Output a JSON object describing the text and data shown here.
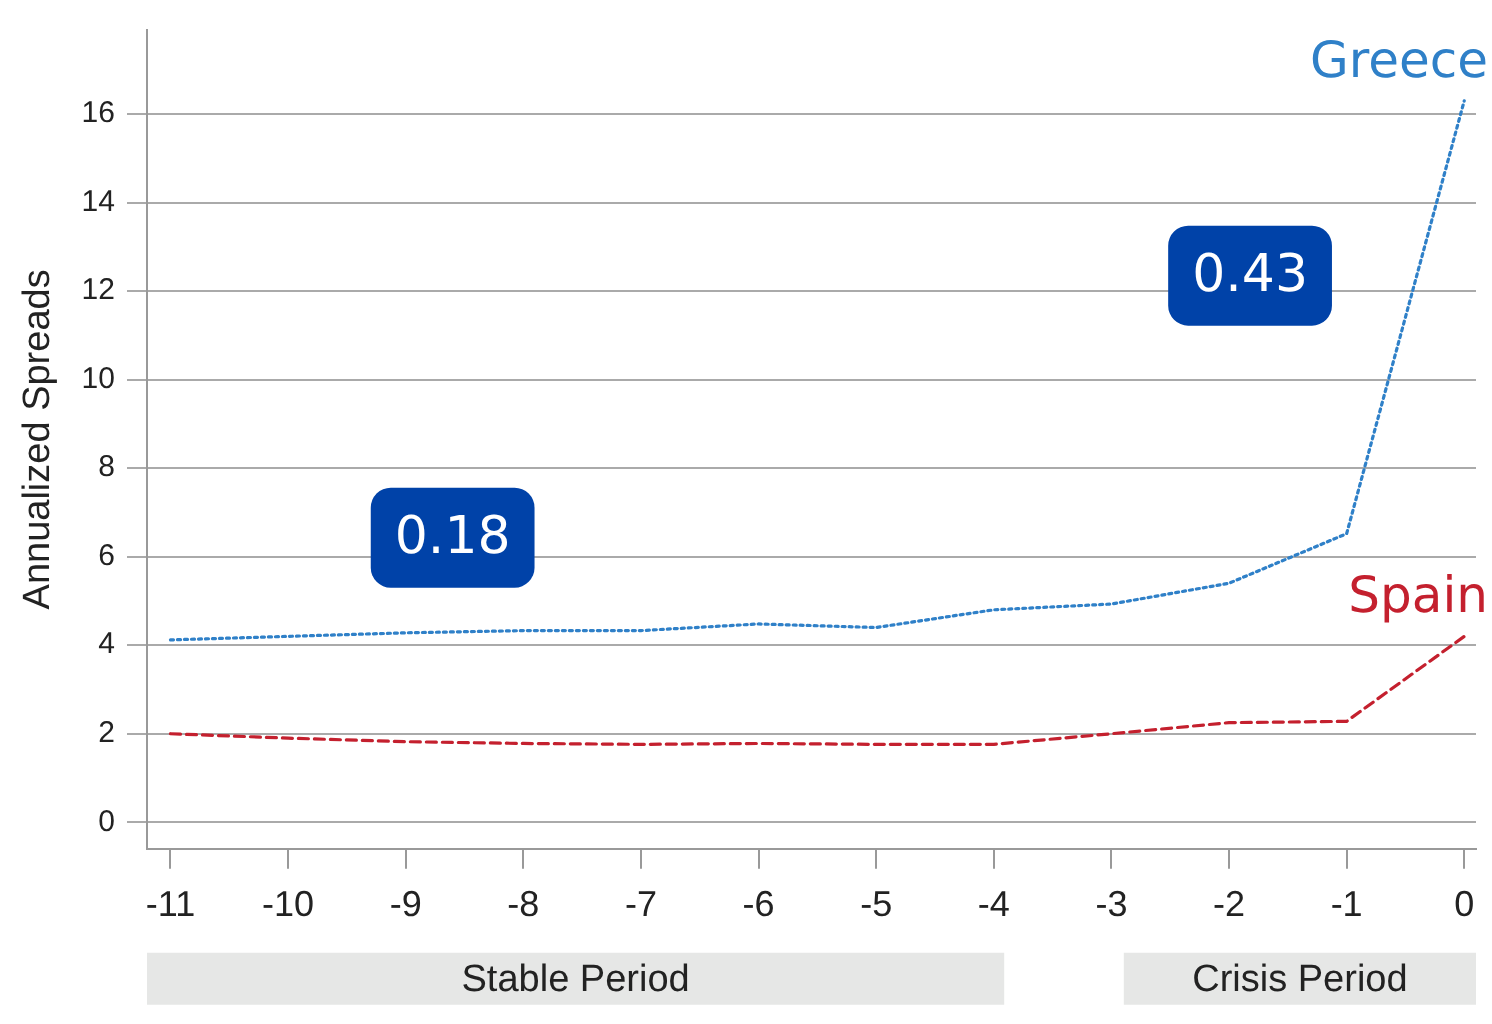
{
  "chart_data": {
    "type": "line",
    "ylabel": "Annualized Spreads",
    "x": [
      -11,
      -10,
      -9,
      -8,
      -7,
      -6,
      -5,
      -4,
      -3,
      -2,
      -1,
      0
    ],
    "series": [
      {
        "name": "Greece",
        "color": "#2f80c8",
        "line_style": "dotted",
        "values": [
          4.12,
          4.2,
          4.28,
          4.33,
          4.33,
          4.48,
          4.4,
          4.8,
          4.93,
          5.4,
          6.52,
          16.3
        ]
      },
      {
        "name": "Spain",
        "color": "#c4202e",
        "line_style": "dashed",
        "values": [
          2.0,
          1.9,
          1.82,
          1.78,
          1.76,
          1.78,
          1.76,
          1.76,
          2.0,
          2.25,
          2.28,
          4.2
        ]
      }
    ],
    "xlim": [
      -11.2,
      0.1
    ],
    "xticks": [
      -11,
      -10,
      -9,
      -8,
      -7,
      -6,
      -5,
      -4,
      -3,
      -2,
      -1,
      0
    ],
    "ylim": [
      -0.6,
      17.9
    ],
    "yticks": [
      0,
      2,
      4,
      6,
      8,
      10,
      12,
      14,
      16
    ],
    "grid": "y",
    "legend": false,
    "marker": "none",
    "annotations": [
      "0.18",
      "0.43",
      "Stable Period",
      "Crisis Period"
    ]
  }
}
